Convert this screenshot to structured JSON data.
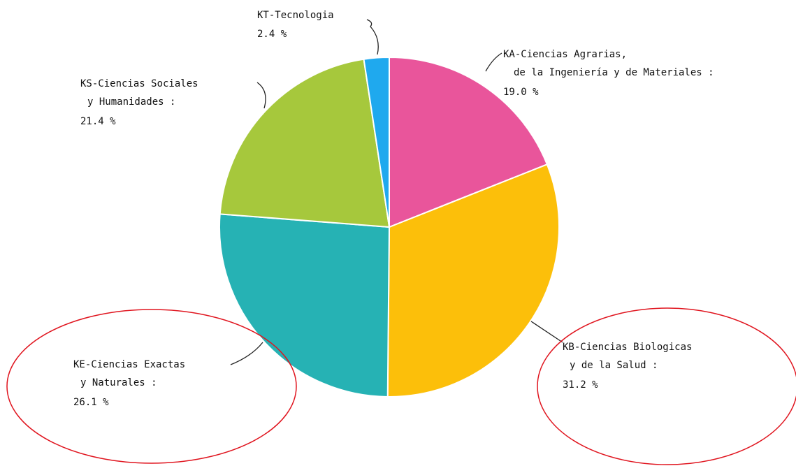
{
  "chart_data": {
    "type": "pie",
    "categories": [
      [
        "KA-Ciencias Agrarias,",
        "de la Ingeniería y de Materiales :"
      ],
      [
        "KB-Ciencias Biologicas",
        "y de la Salud :"
      ],
      [
        "KE-Ciencias Exactas",
        "y Naturales :"
      ],
      [
        "KS-Ciencias Sociales",
        "y Humanidades :"
      ],
      [
        "KT-Tecnologia"
      ]
    ],
    "values": [
      19.0,
      31.2,
      26.1,
      21.4,
      2.4
    ],
    "value_labels": [
      "19.0 %",
      "31.2 %",
      "26.1 %",
      "21.4 %",
      "2.4 %"
    ],
    "colors": [
      "#e9559b",
      "#fcbf0a",
      "#26b2b4",
      "#a6c83c",
      "#1fa9ee"
    ]
  }
}
